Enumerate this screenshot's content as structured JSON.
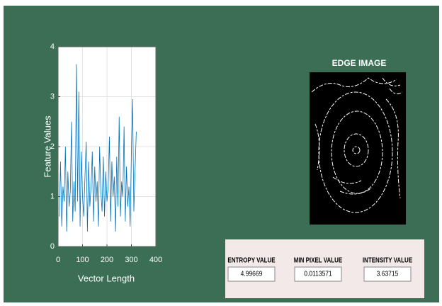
{
  "chart_data": {
    "type": "line",
    "xlabel": "Vector Length",
    "ylabel": "Feature Values",
    "x": [
      5,
      10,
      15,
      20,
      25,
      30,
      35,
      40,
      45,
      50,
      55,
      60,
      65,
      70,
      75,
      80,
      85,
      90,
      95,
      100,
      105,
      110,
      115,
      120,
      125,
      130,
      135,
      140,
      145,
      150,
      155,
      160,
      165,
      170,
      175,
      180,
      185,
      190,
      195,
      200,
      205,
      210,
      215,
      220,
      225,
      230,
      235,
      240,
      245,
      250,
      255,
      260,
      265,
      270,
      275,
      280,
      285,
      290,
      295,
      300,
      305,
      310,
      315,
      320
    ],
    "series": [
      {
        "name": "Feature Values",
        "color": "#0072bd",
        "values": [
          0.6,
          1.7,
          0.4,
          1.2,
          0.9,
          2.0,
          0.3,
          1.5,
          0.8,
          1.1,
          2.5,
          0.5,
          1.3,
          0.7,
          3.65,
          0.9,
          3.1,
          0.4,
          1.9,
          1.0,
          0.6,
          1.4,
          2.1,
          0.3,
          1.7,
          0.8,
          1.2,
          1.9,
          0.5,
          1.6,
          0.9,
          1.3,
          0.4,
          2.0,
          1.1,
          0.7,
          1.8,
          0.6,
          1.5,
          0.9,
          1.2,
          2.2,
          0.5,
          1.7,
          1.0,
          1.4,
          0.3,
          1.8,
          0.8,
          2.6,
          0.6,
          1.3,
          1.0,
          2.4,
          0.5,
          1.6,
          0.8,
          1.2,
          0.4,
          1.9,
          2.95,
          0.7,
          1.5,
          2.3
        ]
      }
    ],
    "xlim": [
      0,
      400
    ],
    "xticks": [
      0,
      100,
      200,
      300,
      400
    ],
    "ylim": [
      0,
      4
    ],
    "yticks": [
      0,
      1,
      2,
      3,
      4
    ],
    "grid": true
  },
  "edge_image": {
    "title": "EDGE IMAGE"
  },
  "panel": {
    "fields": [
      {
        "label": "ENTROPY VALUE",
        "value": "4.99669"
      },
      {
        "label": "MIN PIXEL VALUE",
        "value": "0.0113571"
      },
      {
        "label": "INTENSITY VALUE",
        "value": "3.63715"
      }
    ]
  }
}
